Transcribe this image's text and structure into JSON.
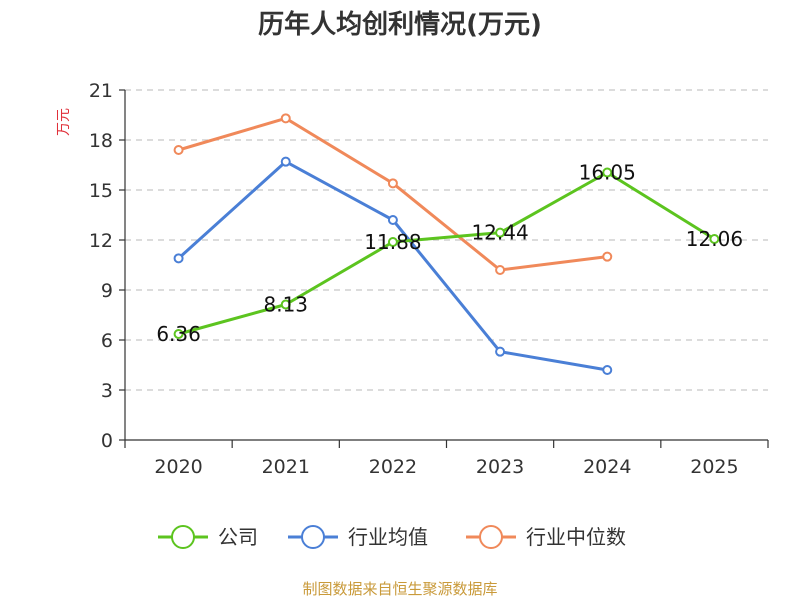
{
  "chart_data": {
    "type": "line",
    "title": "历年人均创利情况(万元)",
    "ylabel": "万元",
    "xlabel": "",
    "ylim": [
      0,
      21
    ],
    "yticks": [
      0,
      3,
      6,
      9,
      12,
      15,
      18,
      21
    ],
    "categories": [
      "2020",
      "2021",
      "2022",
      "2023",
      "2024",
      "2025"
    ],
    "grid": "horizontal dashed",
    "legend_position": "bottom",
    "series": [
      {
        "name": "公司",
        "color": "#5cc41f",
        "values": [
          6.36,
          8.13,
          11.88,
          12.44,
          16.05,
          12.06
        ],
        "labels": [
          "6.36",
          "8.13",
          "11.88",
          "12.44",
          "16.05",
          "12.06"
        ]
      },
      {
        "name": "行业均值",
        "color": "#4a7fd6",
        "values": [
          10.9,
          16.7,
          13.2,
          5.3,
          4.2,
          null
        ]
      },
      {
        "name": "行业中位数",
        "color": "#f0895a",
        "values": [
          17.4,
          19.3,
          15.4,
          10.2,
          11.0,
          null
        ]
      }
    ]
  },
  "source_text": "制图数据来自恒生聚源数据库",
  "colors": {
    "axis": "#333333",
    "grid": "#c8c8c8",
    "ylabel": "#e0303a",
    "source": "#c99a3a"
  }
}
